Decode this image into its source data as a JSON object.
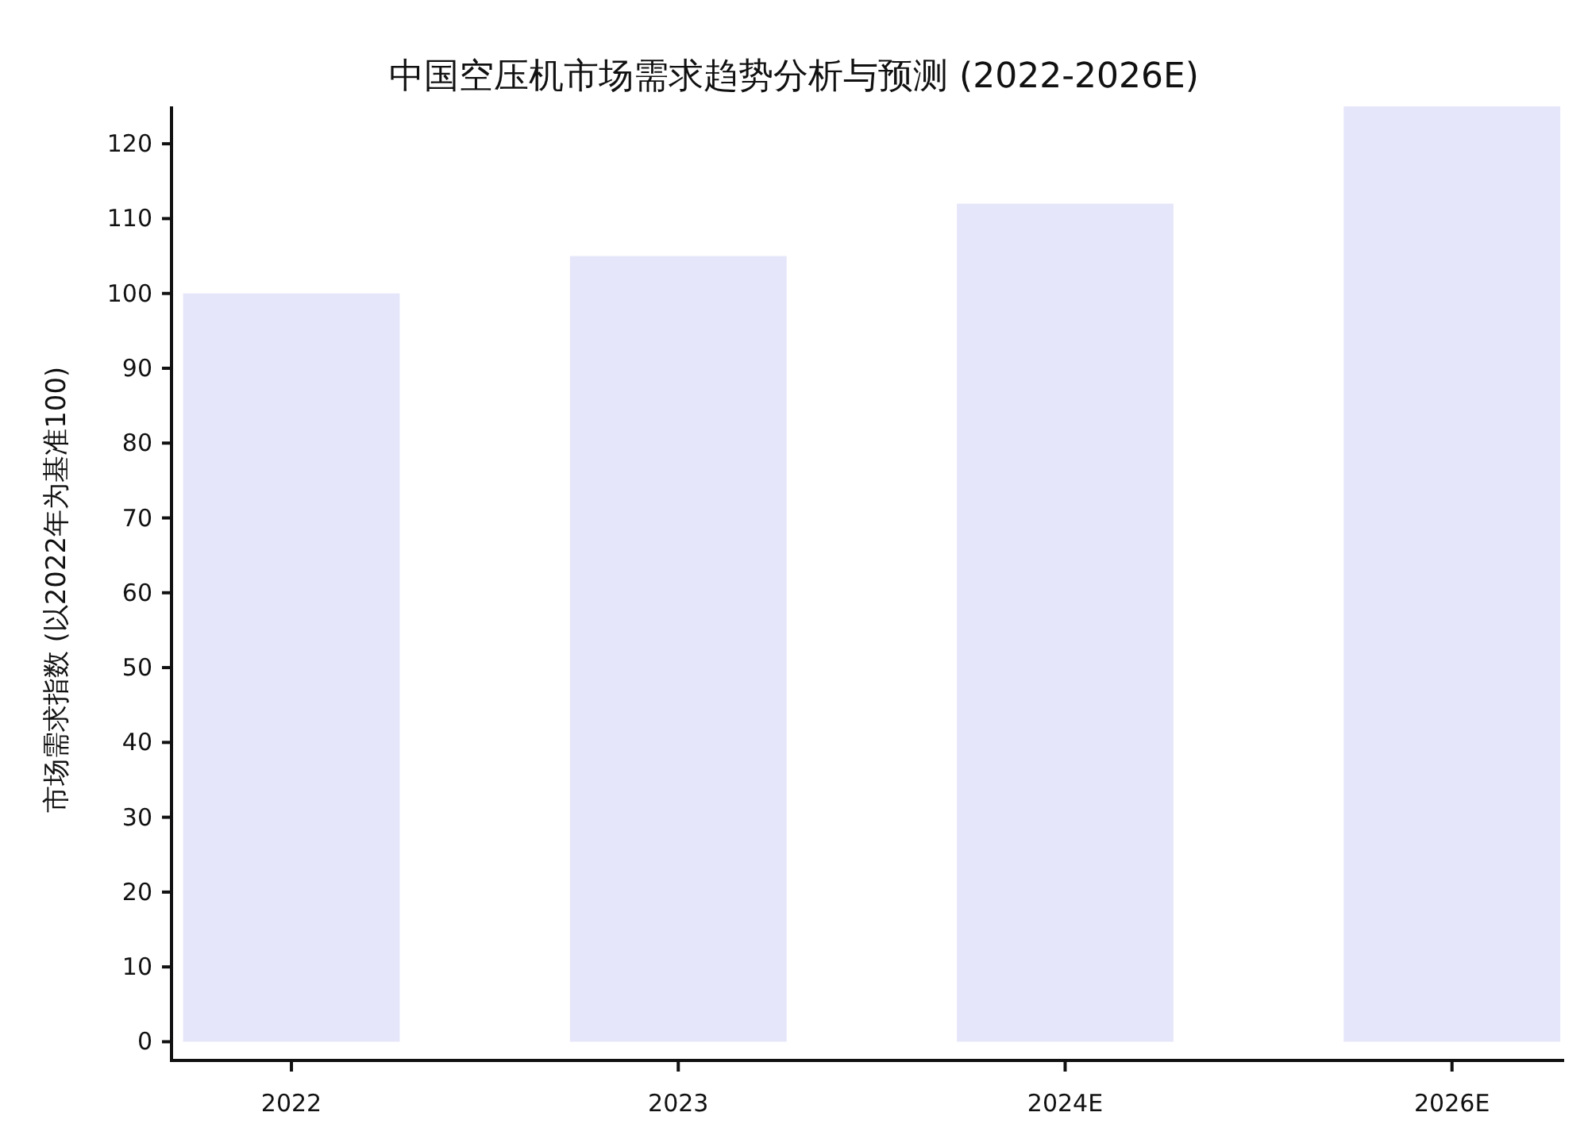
{
  "chart_data": {
    "type": "bar",
    "title": "中国空压机市场需求趋势分析与预测 (2022-2026E)",
    "ylabel": "市场需求指数 (以2022年为基准100)",
    "categories": [
      "2022",
      "2023",
      "2024E",
      "2026E"
    ],
    "values": [
      100,
      105,
      112,
      125
    ],
    "color": "#e6e6fa",
    "ylim": [
      -2.5,
      125
    ],
    "yticks": [
      0,
      10,
      20,
      30,
      40,
      50,
      60,
      70,
      80,
      90,
      100,
      110,
      120
    ]
  }
}
